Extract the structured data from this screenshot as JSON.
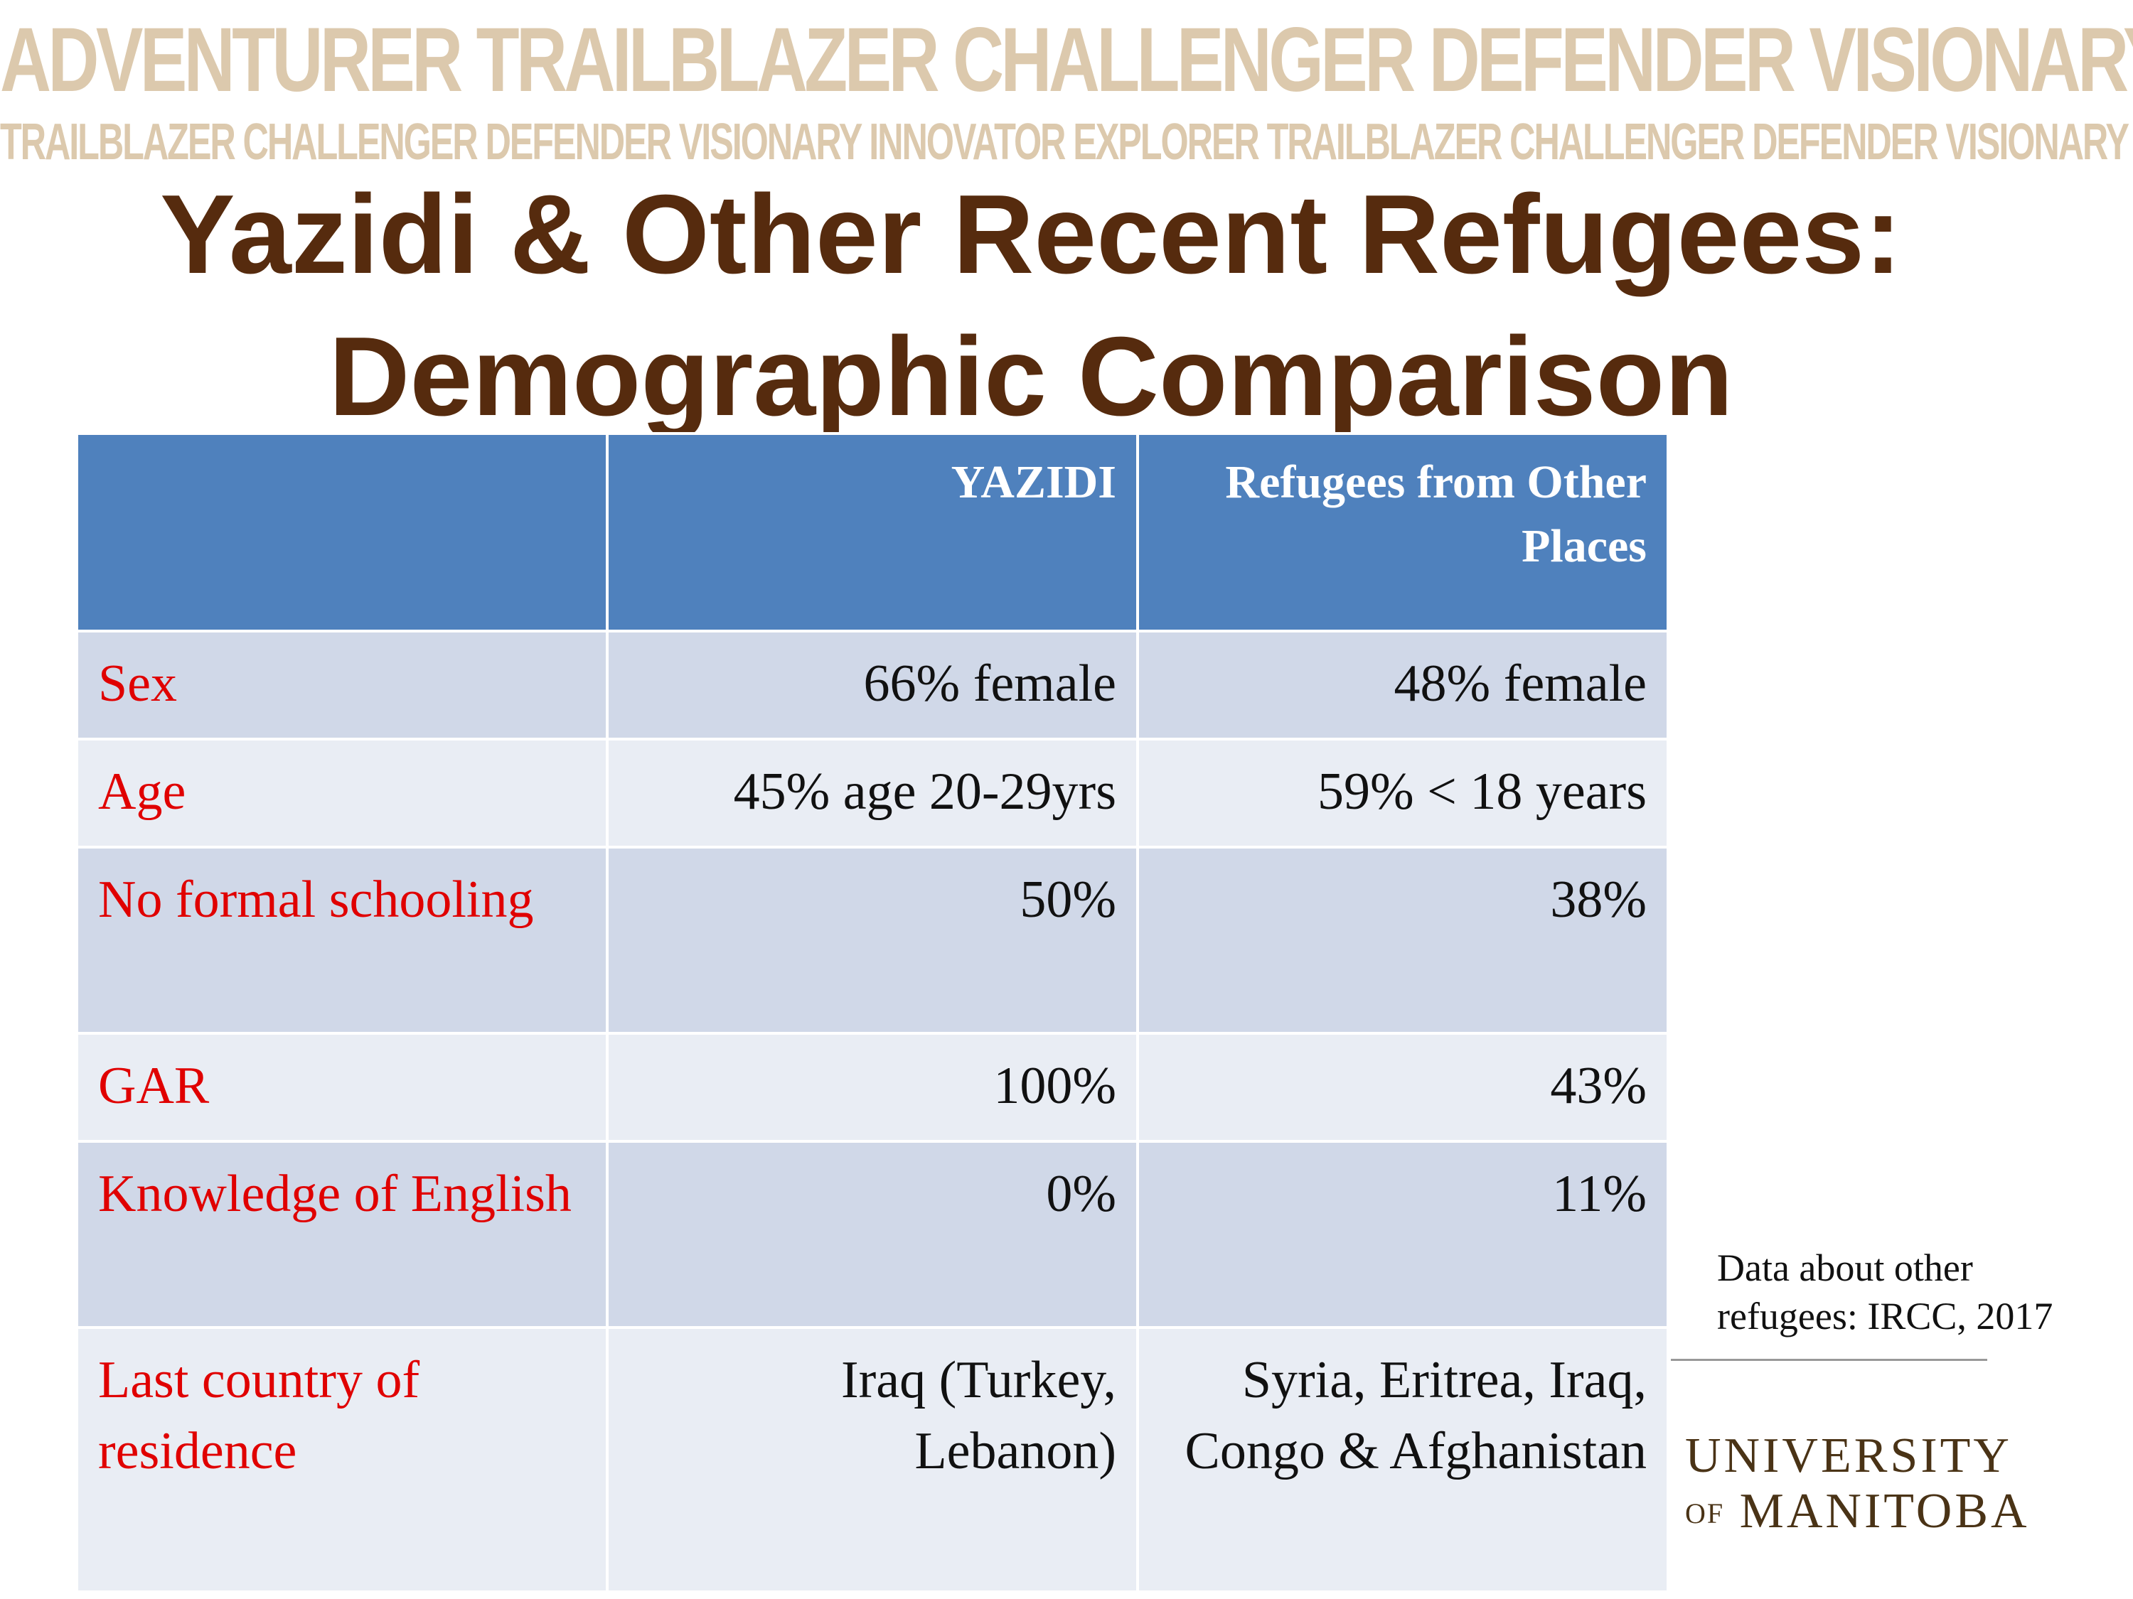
{
  "banner": {
    "line1": "ADVENTURER TRAILBLAZER CHALLENGER DEFENDER VISIONARY INNOVATOR",
    "line2": "TRAILBLAZER CHALLENGER DEFENDER VISIONARY INNOVATOR EXPLORER TRAILBLAZER CHALLENGER DEFENDER VISIONARY INNOVATOR EXPLORER"
  },
  "title": {
    "line1": "Yazidi & Other Recent Refugees:",
    "line2": "Demographic Comparison"
  },
  "table": {
    "headers": [
      "",
      "YAZIDI",
      "Refugees from Other Places"
    ],
    "rows": [
      {
        "label": "Sex",
        "yazidi": "66% female",
        "other": "48% female"
      },
      {
        "label": "Age",
        "yazidi": "45% age 20-29yrs",
        "other": "59% < 18 years"
      },
      {
        "label": "No formal schooling",
        "yazidi": "50%",
        "other": "38%"
      },
      {
        "label": "GAR",
        "yazidi": "100%",
        "other": "43%"
      },
      {
        "label": "Knowledge of English",
        "yazidi": "0%",
        "other": "11%"
      },
      {
        "label": "Last country of residence",
        "yazidi": "Iraq (Turkey, Lebanon)",
        "other": "Syria, Eritrea, Iraq, Congo & Afghanistan"
      }
    ]
  },
  "note": "Data about other refugees: IRCC, 2017",
  "logo": {
    "line1": "UNIVERSITY",
    "of": "OF",
    "line2": "MANITOBA"
  },
  "colors": {
    "title": "#562b0e",
    "header_bg": "#4f81bd",
    "row_label": "#e00000",
    "banner": "#dcc9ad"
  }
}
